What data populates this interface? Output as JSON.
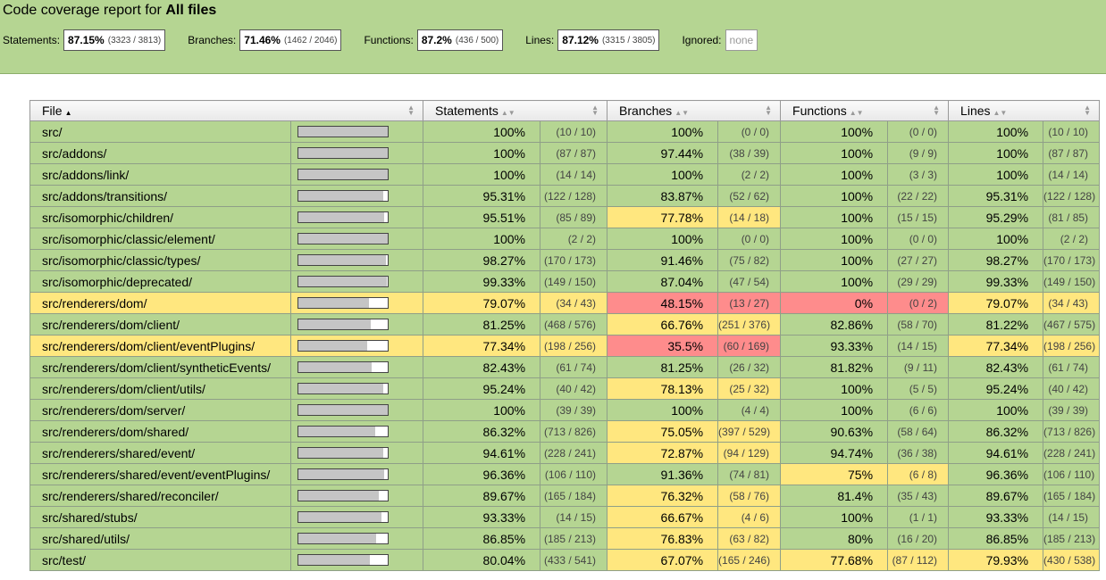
{
  "header": {
    "title_prefix": "Code coverage report for ",
    "title_bold": "All files",
    "summary": [
      {
        "label": "Statements:",
        "pct": "87.15%",
        "count": "(3323 / 3813)"
      },
      {
        "label": "Branches:",
        "pct": "71.46%",
        "count": "(1462 / 2046)"
      },
      {
        "label": "Functions:",
        "pct": "87.2%",
        "count": "(436 / 500)"
      },
      {
        "label": "Lines:",
        "pct": "87.12%",
        "count": "(3315 / 3805)"
      }
    ],
    "ignored_label": "Ignored:",
    "ignored_value": "none"
  },
  "table": {
    "columns": [
      "File",
      "Statements",
      "Branches",
      "Functions",
      "Lines"
    ],
    "rows": [
      {
        "file": "src/",
        "status": "high",
        "bar": 100,
        "s": [
          "100%",
          "(10 / 10)",
          "high"
        ],
        "b": [
          "100%",
          "(0 / 0)",
          "high"
        ],
        "f": [
          "100%",
          "(0 / 0)",
          "high"
        ],
        "l": [
          "100%",
          "(10 / 10)",
          "high"
        ]
      },
      {
        "file": "src/addons/",
        "status": "high",
        "bar": 100,
        "s": [
          "100%",
          "(87 / 87)",
          "high"
        ],
        "b": [
          "97.44%",
          "(38 / 39)",
          "high"
        ],
        "f": [
          "100%",
          "(9 / 9)",
          "high"
        ],
        "l": [
          "100%",
          "(87 / 87)",
          "high"
        ]
      },
      {
        "file": "src/addons/link/",
        "status": "high",
        "bar": 100,
        "s": [
          "100%",
          "(14 / 14)",
          "high"
        ],
        "b": [
          "100%",
          "(2 / 2)",
          "high"
        ],
        "f": [
          "100%",
          "(3 / 3)",
          "high"
        ],
        "l": [
          "100%",
          "(14 / 14)",
          "high"
        ]
      },
      {
        "file": "src/addons/transitions/",
        "status": "high",
        "bar": 95.31,
        "s": [
          "95.31%",
          "(122 / 128)",
          "high"
        ],
        "b": [
          "83.87%",
          "(52 / 62)",
          "high"
        ],
        "f": [
          "100%",
          "(22 / 22)",
          "high"
        ],
        "l": [
          "95.31%",
          "(122 / 128)",
          "high"
        ]
      },
      {
        "file": "src/isomorphic/children/",
        "status": "high",
        "bar": 95.51,
        "s": [
          "95.51%",
          "(85 / 89)",
          "high"
        ],
        "b": [
          "77.78%",
          "(14 / 18)",
          "medium"
        ],
        "f": [
          "100%",
          "(15 / 15)",
          "high"
        ],
        "l": [
          "95.29%",
          "(81 / 85)",
          "high"
        ]
      },
      {
        "file": "src/isomorphic/classic/element/",
        "status": "high",
        "bar": 100,
        "s": [
          "100%",
          "(2 / 2)",
          "high"
        ],
        "b": [
          "100%",
          "(0 / 0)",
          "high"
        ],
        "f": [
          "100%",
          "(0 / 0)",
          "high"
        ],
        "l": [
          "100%",
          "(2 / 2)",
          "high"
        ]
      },
      {
        "file": "src/isomorphic/classic/types/",
        "status": "high",
        "bar": 98.27,
        "s": [
          "98.27%",
          "(170 / 173)",
          "high"
        ],
        "b": [
          "91.46%",
          "(75 / 82)",
          "high"
        ],
        "f": [
          "100%",
          "(27 / 27)",
          "high"
        ],
        "l": [
          "98.27%",
          "(170 / 173)",
          "high"
        ]
      },
      {
        "file": "src/isomorphic/deprecated/",
        "status": "high",
        "bar": 99.33,
        "s": [
          "99.33%",
          "(149 / 150)",
          "high"
        ],
        "b": [
          "87.04%",
          "(47 / 54)",
          "high"
        ],
        "f": [
          "100%",
          "(29 / 29)",
          "high"
        ],
        "l": [
          "99.33%",
          "(149 / 150)",
          "high"
        ]
      },
      {
        "file": "src/renderers/dom/",
        "status": "medium",
        "bar": 79.07,
        "s": [
          "79.07%",
          "(34 / 43)",
          "medium"
        ],
        "b": [
          "48.15%",
          "(13 / 27)",
          "low"
        ],
        "f": [
          "0%",
          "(0 / 2)",
          "low"
        ],
        "l": [
          "79.07%",
          "(34 / 43)",
          "medium"
        ]
      },
      {
        "file": "src/renderers/dom/client/",
        "status": "high",
        "bar": 81.25,
        "s": [
          "81.25%",
          "(468 / 576)",
          "high"
        ],
        "b": [
          "66.76%",
          "(251 / 376)",
          "medium"
        ],
        "f": [
          "82.86%",
          "(58 / 70)",
          "high"
        ],
        "l": [
          "81.22%",
          "(467 / 575)",
          "high"
        ]
      },
      {
        "file": "src/renderers/dom/client/eventPlugins/",
        "status": "medium",
        "bar": 77.34,
        "s": [
          "77.34%",
          "(198 / 256)",
          "medium"
        ],
        "b": [
          "35.5%",
          "(60 / 169)",
          "low"
        ],
        "f": [
          "93.33%",
          "(14 / 15)",
          "high"
        ],
        "l": [
          "77.34%",
          "(198 / 256)",
          "medium"
        ]
      },
      {
        "file": "src/renderers/dom/client/syntheticEvents/",
        "status": "high",
        "bar": 82.43,
        "s": [
          "82.43%",
          "(61 / 74)",
          "high"
        ],
        "b": [
          "81.25%",
          "(26 / 32)",
          "high"
        ],
        "f": [
          "81.82%",
          "(9 / 11)",
          "high"
        ],
        "l": [
          "82.43%",
          "(61 / 74)",
          "high"
        ]
      },
      {
        "file": "src/renderers/dom/client/utils/",
        "status": "high",
        "bar": 95.24,
        "s": [
          "95.24%",
          "(40 / 42)",
          "high"
        ],
        "b": [
          "78.13%",
          "(25 / 32)",
          "medium"
        ],
        "f": [
          "100%",
          "(5 / 5)",
          "high"
        ],
        "l": [
          "95.24%",
          "(40 / 42)",
          "high"
        ]
      },
      {
        "file": "src/renderers/dom/server/",
        "status": "high",
        "bar": 100,
        "s": [
          "100%",
          "(39 / 39)",
          "high"
        ],
        "b": [
          "100%",
          "(4 / 4)",
          "high"
        ],
        "f": [
          "100%",
          "(6 / 6)",
          "high"
        ],
        "l": [
          "100%",
          "(39 / 39)",
          "high"
        ]
      },
      {
        "file": "src/renderers/dom/shared/",
        "status": "high",
        "bar": 86.32,
        "s": [
          "86.32%",
          "(713 / 826)",
          "high"
        ],
        "b": [
          "75.05%",
          "(397 / 529)",
          "medium"
        ],
        "f": [
          "90.63%",
          "(58 / 64)",
          "high"
        ],
        "l": [
          "86.32%",
          "(713 / 826)",
          "high"
        ]
      },
      {
        "file": "src/renderers/shared/event/",
        "status": "high",
        "bar": 94.61,
        "s": [
          "94.61%",
          "(228 / 241)",
          "high"
        ],
        "b": [
          "72.87%",
          "(94 / 129)",
          "medium"
        ],
        "f": [
          "94.74%",
          "(36 / 38)",
          "high"
        ],
        "l": [
          "94.61%",
          "(228 / 241)",
          "high"
        ]
      },
      {
        "file": "src/renderers/shared/event/eventPlugins/",
        "status": "high",
        "bar": 96.36,
        "s": [
          "96.36%",
          "(106 / 110)",
          "high"
        ],
        "b": [
          "91.36%",
          "(74 / 81)",
          "high"
        ],
        "f": [
          "75%",
          "(6 / 8)",
          "medium"
        ],
        "l": [
          "96.36%",
          "(106 / 110)",
          "high"
        ]
      },
      {
        "file": "src/renderers/shared/reconciler/",
        "status": "high",
        "bar": 89.67,
        "s": [
          "89.67%",
          "(165 / 184)",
          "high"
        ],
        "b": [
          "76.32%",
          "(58 / 76)",
          "medium"
        ],
        "f": [
          "81.4%",
          "(35 / 43)",
          "high"
        ],
        "l": [
          "89.67%",
          "(165 / 184)",
          "high"
        ]
      },
      {
        "file": "src/shared/stubs/",
        "status": "high",
        "bar": 93.33,
        "s": [
          "93.33%",
          "(14 / 15)",
          "high"
        ],
        "b": [
          "66.67%",
          "(4 / 6)",
          "medium"
        ],
        "f": [
          "100%",
          "(1 / 1)",
          "high"
        ],
        "l": [
          "93.33%",
          "(14 / 15)",
          "high"
        ]
      },
      {
        "file": "src/shared/utils/",
        "status": "high",
        "bar": 86.85,
        "s": [
          "86.85%",
          "(185 / 213)",
          "high"
        ],
        "b": [
          "76.83%",
          "(63 / 82)",
          "medium"
        ],
        "f": [
          "80%",
          "(16 / 20)",
          "high"
        ],
        "l": [
          "86.85%",
          "(185 / 213)",
          "high"
        ]
      },
      {
        "file": "src/test/",
        "status": "high",
        "bar": 80.04,
        "s": [
          "80.04%",
          "(433 / 541)",
          "high"
        ],
        "b": [
          "67.07%",
          "(165 / 246)",
          "medium"
        ],
        "f": [
          "77.68%",
          "(87 / 112)",
          "medium"
        ],
        "l": [
          "79.93%",
          "(430 / 538)",
          "medium"
        ]
      }
    ]
  },
  "colors": {
    "high": "#b5d592",
    "medium": "#ffe77f",
    "low": "#fe8c8c",
    "header_bg": "#b5d592"
  }
}
